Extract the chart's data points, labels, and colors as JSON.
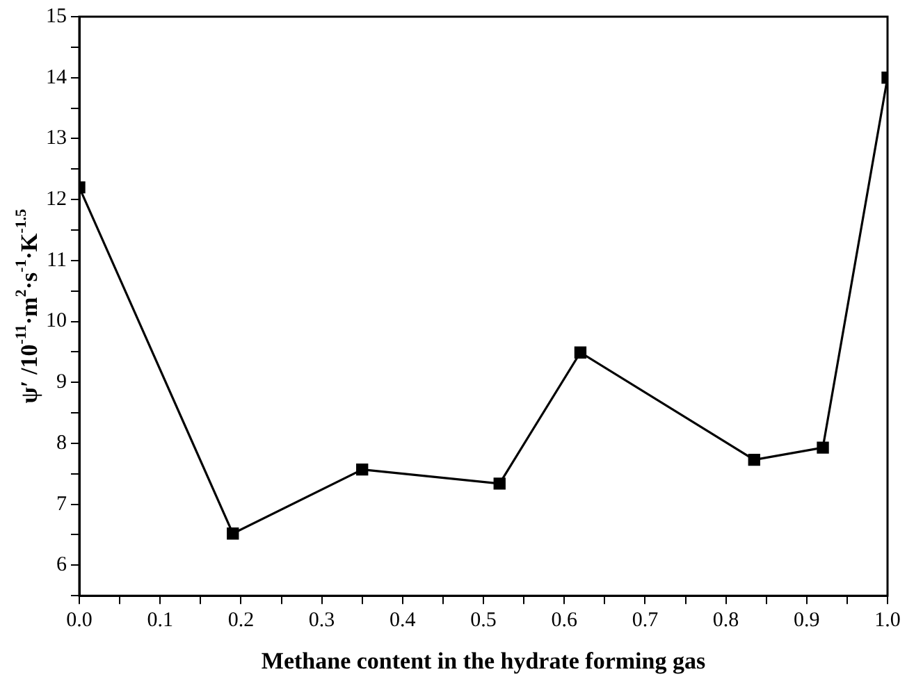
{
  "chart_data": {
    "type": "line",
    "xlabel": "Methane content in the hydrate forming gas",
    "ylabel": "ψ′ /10$^{-11}$·m$^{2}$·s$^{-1}$·K$^{-1.5}$",
    "x": [
      0,
      0.19,
      0.35,
      0.52,
      0.62,
      0.835,
      0.92,
      1.0
    ],
    "series": [
      {
        "color": "#000000",
        "values": [
          12.2,
          6.52,
          7.57,
          7.34,
          9.49,
          7.73,
          7.93,
          14.0
        ]
      }
    ],
    "xlim": [
      0,
      1
    ],
    "xticks": [
      {
        "value": 0,
        "label": "0.0"
      },
      {
        "value": 0.05,
        "label": null
      },
      {
        "value": 0.1,
        "label": "0.1"
      },
      {
        "value": 0.15,
        "label": null
      },
      {
        "value": 0.2,
        "label": "0.2"
      },
      {
        "value": 0.25,
        "label": null
      },
      {
        "value": 0.3,
        "label": "0.3"
      },
      {
        "value": 0.35,
        "label": null
      },
      {
        "value": 0.4,
        "label": "0.4"
      },
      {
        "value": 0.45,
        "label": null
      },
      {
        "value": 0.5,
        "label": "0.5"
      },
      {
        "value": 0.55,
        "label": null
      },
      {
        "value": 0.6,
        "label": "0.6"
      },
      {
        "value": 0.65,
        "label": null
      },
      {
        "value": 0.7,
        "label": "0.7"
      },
      {
        "value": 0.75,
        "label": null
      },
      {
        "value": 0.8,
        "label": "0.8"
      },
      {
        "value": 0.85,
        "label": null
      },
      {
        "value": 0.9,
        "label": "0.9"
      },
      {
        "value": 0.95,
        "label": null
      },
      {
        "value": 1,
        "label": "1.0"
      }
    ],
    "ylim": [
      5.5,
      15
    ],
    "yticks": [
      {
        "value": 5.5,
        "label": null
      },
      6,
      {
        "value": 6.5,
        "label": null
      },
      7,
      {
        "value": 7.5,
        "label": null
      },
      8,
      {
        "value": 8.5,
        "label": null
      },
      9,
      {
        "value": 9.5,
        "label": null
      },
      10,
      {
        "value": 10.5,
        "label": null
      },
      11,
      {
        "value": 11.5,
        "label": null
      },
      12,
      {
        "value": 12.5,
        "label": null
      },
      13,
      {
        "value": 13.5,
        "label": null
      },
      14,
      {
        "value": 14.5,
        "label": null
      },
      15
    ],
    "grid": false,
    "legend": false,
    "marker": "square",
    "line_style": "solid"
  }
}
